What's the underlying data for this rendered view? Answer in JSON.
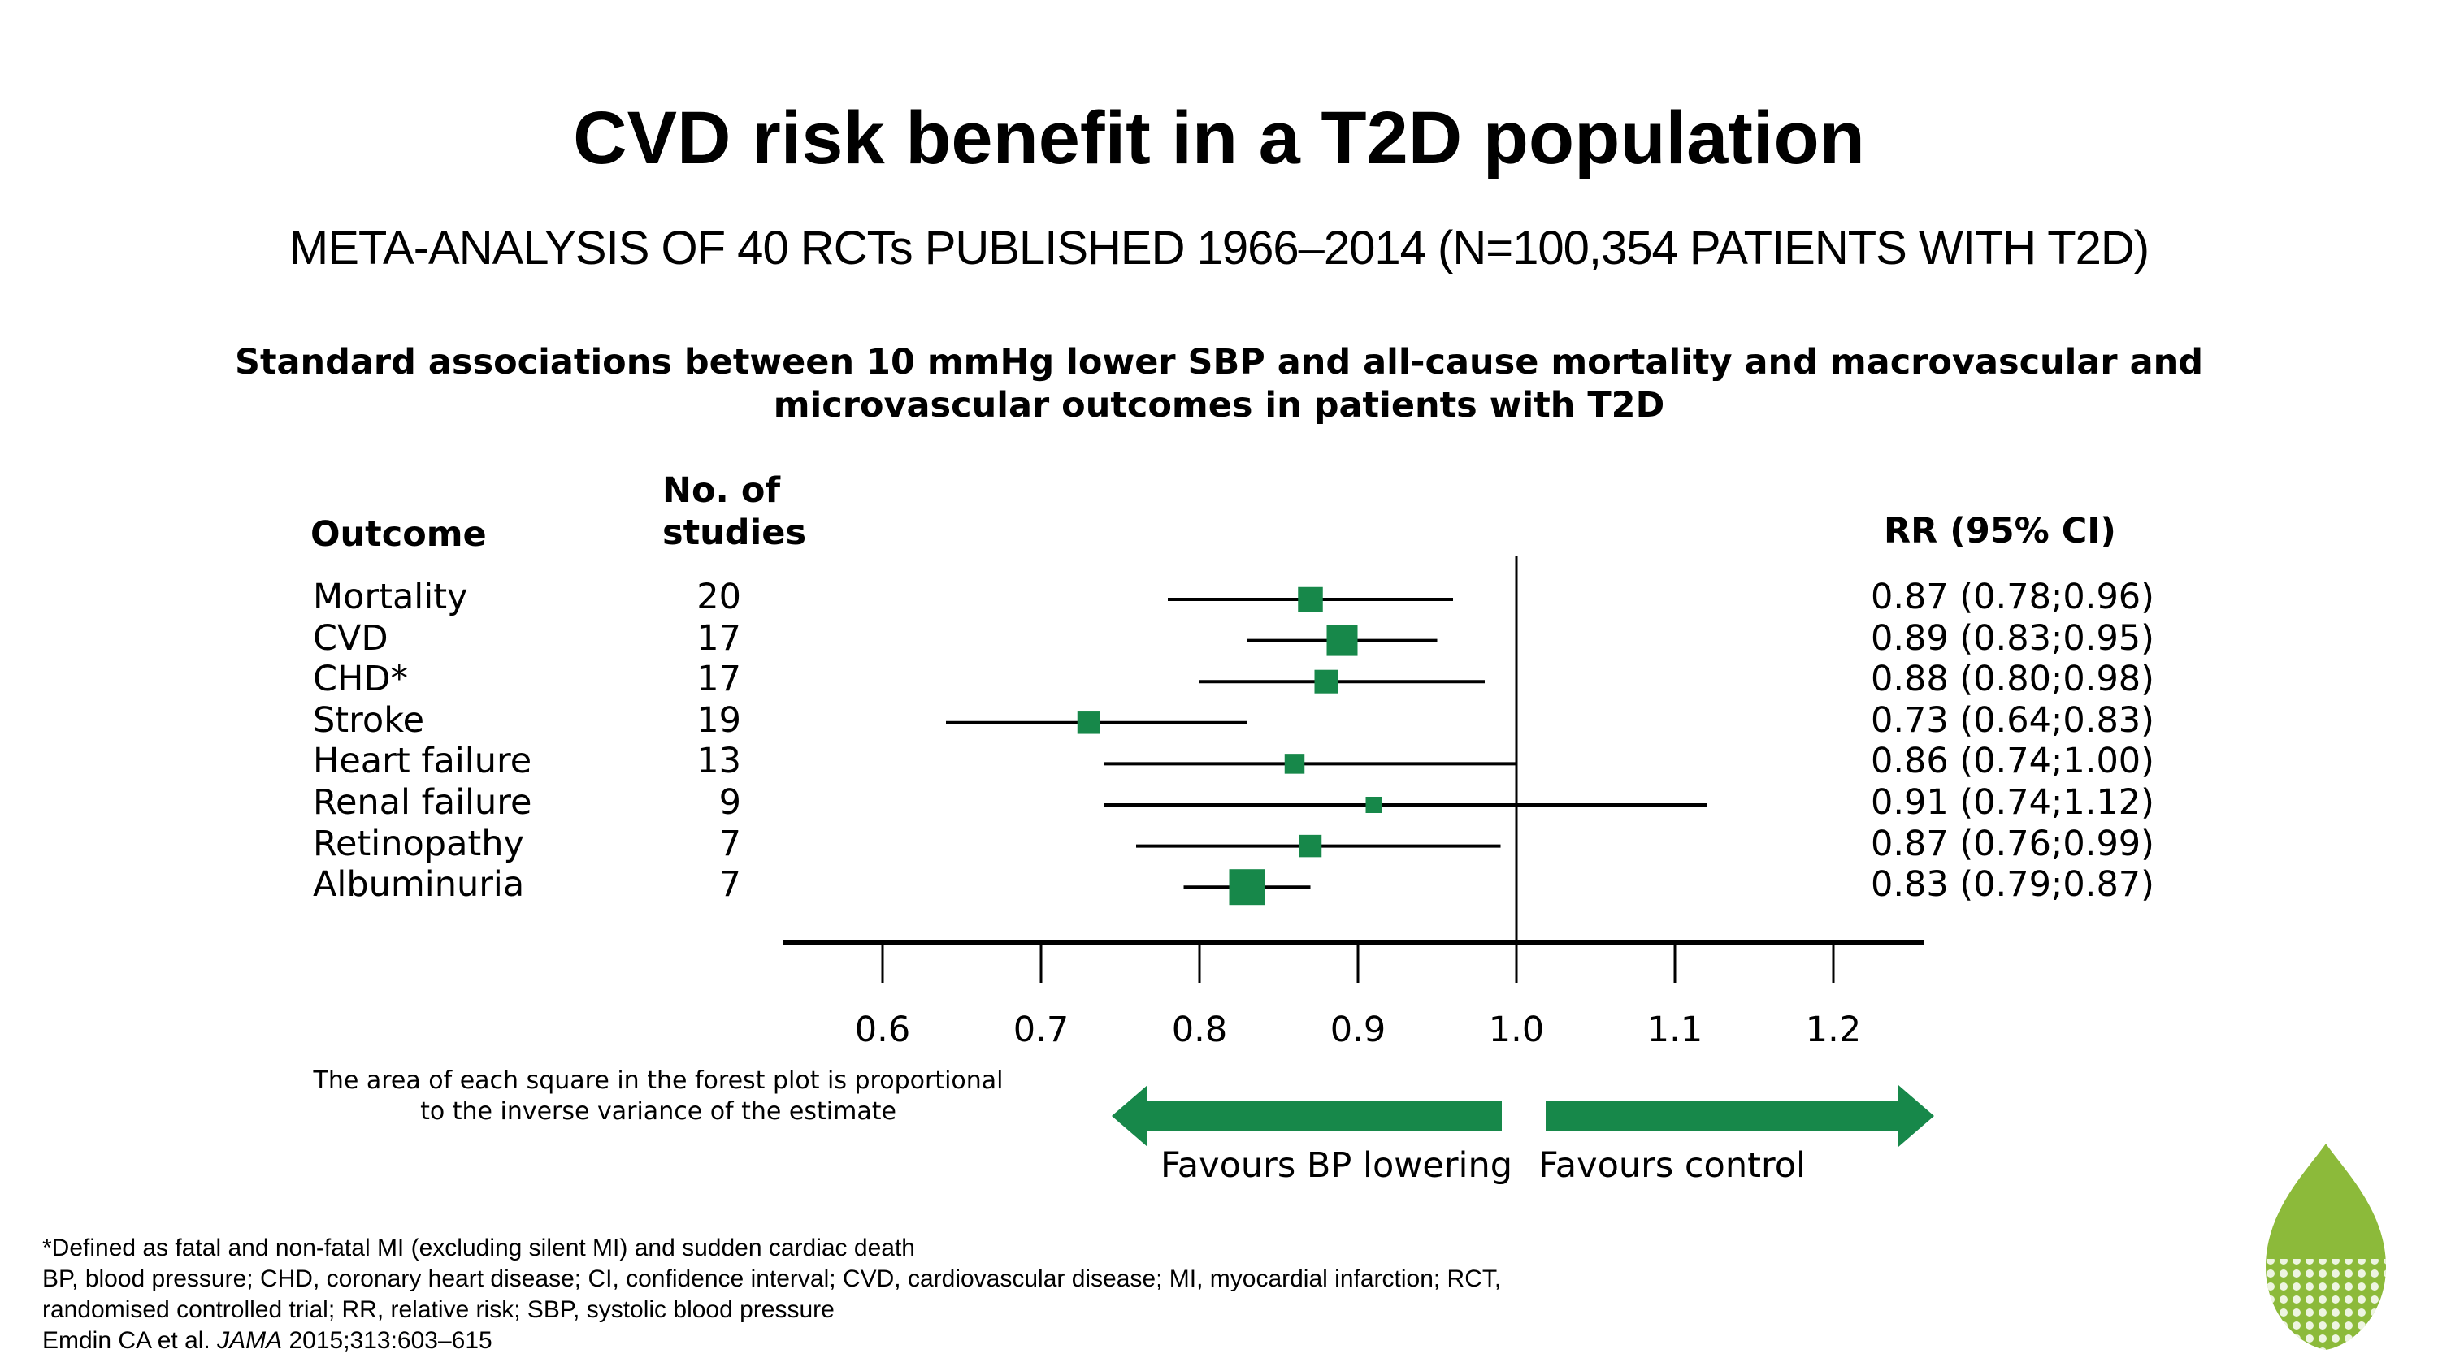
{
  "title": "CVD risk benefit in a T2D population",
  "subtitle": "META-ANALYSIS OF 40 RCTs PUBLISHED 1966–2014 (N=100,354 PATIENTS WITH T2D)",
  "chart_heading_line1": "Standard associations between 10 mmHg lower SBP and all-cause mortality and macrovascular and",
  "chart_heading_line2": "microvascular outcomes in patients with T2D",
  "headers": {
    "outcome": "Outcome",
    "studies_line1": "No. of",
    "studies_line2": "studies",
    "rr": "RR (95% CI)"
  },
  "chart_data": {
    "type": "forest",
    "xlim": [
      0.53,
      1.25
    ],
    "ticks": [
      "0.6",
      "0.7",
      "0.8",
      "0.9",
      "1.0",
      "1.1",
      "1.2"
    ],
    "reference_line": 1.0,
    "rows": [
      {
        "outcome": "Mortality",
        "studies": "20",
        "rr": 0.87,
        "lo": 0.78,
        "hi": 0.96,
        "weight": 0.55,
        "ci_text": "0.87 (0.78;0.96)"
      },
      {
        "outcome": "CVD",
        "studies": "17",
        "rr": 0.89,
        "lo": 0.83,
        "hi": 0.95,
        "weight": 0.8,
        "ci_text": "0.89 (0.83;0.95)"
      },
      {
        "outcome": "CHD*",
        "studies": "17",
        "rr": 0.88,
        "lo": 0.8,
        "hi": 0.98,
        "weight": 0.5,
        "ci_text": "0.88 (0.80;0.98)"
      },
      {
        "outcome": "Stroke",
        "studies": "19",
        "rr": 0.73,
        "lo": 0.64,
        "hi": 0.83,
        "weight": 0.45,
        "ci_text": "0.73 (0.64;0.83)"
      },
      {
        "outcome": "Heart failure",
        "studies": "13",
        "rr": 0.86,
        "lo": 0.74,
        "hi": 1.0,
        "weight": 0.35,
        "ci_text": "0.86 (0.74;1.00)"
      },
      {
        "outcome": "Renal failure",
        "studies": "9",
        "rr": 0.91,
        "lo": 0.74,
        "hi": 1.12,
        "weight": 0.2,
        "ci_text": "0.91 (0.74;1.12)"
      },
      {
        "outcome": "Retinopathy",
        "studies": "7",
        "rr": 0.87,
        "lo": 0.76,
        "hi": 0.99,
        "weight": 0.45,
        "ci_text": "0.87 (0.76;0.99)"
      },
      {
        "outcome": "Albuminuria",
        "studies": "7",
        "rr": 0.83,
        "lo": 0.79,
        "hi": 0.87,
        "weight": 1.0,
        "ci_text": "0.83 (0.79;0.87)"
      }
    ]
  },
  "note_line1": "The area of each square in the forest plot is proportional",
  "note_line2": "to the inverse variance of the estimate",
  "favours_left": "Favours BP lowering",
  "favours_right": "Favours control",
  "footnotes": {
    "line1": "*Defined as fatal and non-fatal MI (excluding silent MI) and sudden cardiac death",
    "line2": "BP, blood pressure; CHD, coronary heart disease; CI, confidence interval; CVD, cardiovascular disease; MI, myocardial infarction; RCT,",
    "line3": "randomised controlled trial; RR, relative risk; SBP, systolic blood pressure",
    "line4_prefix": "Emdin CA et al. ",
    "line4_journal": "JAMA",
    "line4_suffix": " 2015;313:603–615"
  },
  "colors": {
    "marker": "#17884a",
    "arrow": "#17884a",
    "leaf": "#8cba3a"
  },
  "icons": {
    "logo": "leaf-logo-icon"
  }
}
